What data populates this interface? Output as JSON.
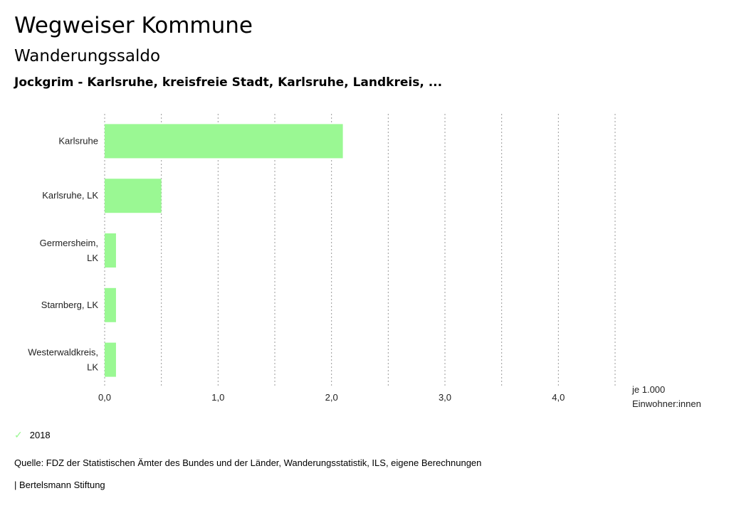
{
  "header": {
    "title": "Wegweiser Kommune",
    "subtitle": "Wanderungssaldo",
    "regions": "Jockgrim - Karlsruhe, kreisfreie Stadt, Karlsruhe, Landkreis, ..."
  },
  "chart_data": {
    "type": "bar",
    "orientation": "horizontal",
    "categories": [
      [
        "Karlsruhe"
      ],
      [
        "Karlsruhe, LK"
      ],
      [
        "Germersheim,",
        "LK"
      ],
      [
        "Starnberg, LK"
      ],
      [
        "Westerwaldkreis,",
        "LK"
      ]
    ],
    "series": [
      {
        "name": "2018",
        "values": [
          2.1,
          0.5,
          0.1,
          0.1,
          0.1
        ],
        "color": "#9af893"
      }
    ],
    "xlim": [
      0,
      4.5
    ],
    "xticks": [
      "0,0",
      "1,0",
      "2,0",
      "3,0",
      "4,0"
    ],
    "xticks_values": [
      0,
      1,
      2,
      3,
      4
    ],
    "xlabel": [
      "je 1.000",
      "Einwohner:innen"
    ],
    "grid": true
  },
  "legend": {
    "label": "2018"
  },
  "footer": {
    "source": "Quelle: FDZ der Statistischen Ämter des Bundes und der Länder, Wanderungsstatistik, ILS, eigene Berechnungen",
    "brand": "| Bertelsmann Stiftung"
  }
}
